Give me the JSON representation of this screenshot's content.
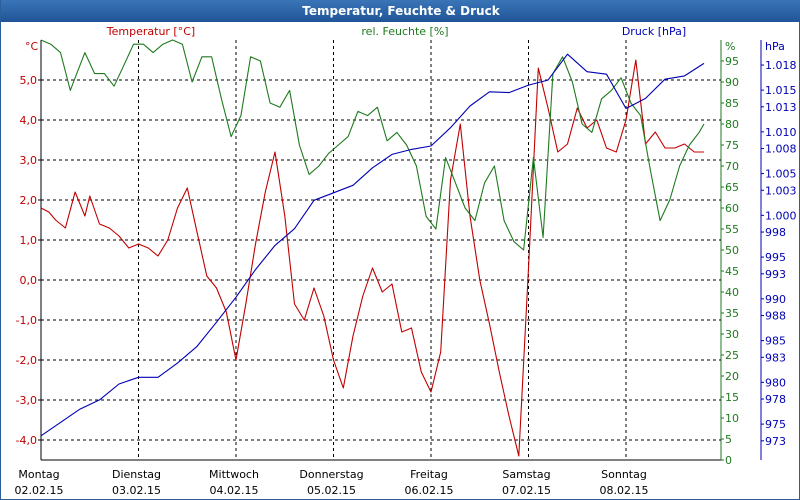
{
  "window": {
    "title": "Temperatur, Feuchte & Druck"
  },
  "colors": {
    "temperature": "#c00000",
    "humidity": "#1f7a1f",
    "pressure": "#0000b4",
    "grid": "#000000",
    "title_bar": "#2b63a6"
  },
  "chart_data": {
    "type": "line",
    "title": "Temperatur, Feuchte & Druck",
    "x_days": [
      {
        "day": "Montag",
        "date": "02.02.15"
      },
      {
        "day": "Dienstag",
        "date": "03.02.15"
      },
      {
        "day": "Mittwoch",
        "date": "04.02.15"
      },
      {
        "day": "Donnerstag",
        "date": "05.02.15"
      },
      {
        "day": "Freitag",
        "date": "06.02.15"
      },
      {
        "day": "Samstag",
        "date": "07.02.15"
      },
      {
        "day": "Sonntag",
        "date": "08.02.15"
      }
    ],
    "axes": {
      "temperature": {
        "label": "Temperatur [°C]",
        "unit": "°C",
        "range": [
          -4.5,
          6.0
        ],
        "ticks": [
          "-4,0",
          "-3,0",
          "-2,0",
          "-1,0",
          "0,0",
          "1,0",
          "2,0",
          "3,0",
          "4,0",
          "5,0"
        ]
      },
      "humidity": {
        "label": "rel. Feuchte [%]",
        "unit": "%",
        "range": [
          0,
          100
        ],
        "ticks": [
          "0",
          "5",
          "10",
          "15",
          "20",
          "25",
          "30",
          "35",
          "40",
          "45",
          "50",
          "55",
          "60",
          "65",
          "70",
          "75",
          "80",
          "85",
          "90",
          "95"
        ]
      },
      "pressure": {
        "label": "Druck [hPa]",
        "unit": "hPa",
        "range": [
          970.7,
          1021.0
        ],
        "ticks": [
          "973",
          "975",
          "978",
          "980",
          "983",
          "985",
          "988",
          "990",
          "993",
          "995",
          "998",
          "1.000",
          "1.003",
          "1.005",
          "1.008",
          "1.010",
          "1.013",
          "1.015",
          "1.018"
        ]
      }
    },
    "series": [
      {
        "name": "Temperatur",
        "axis": "temperature",
        "x": [
          0,
          0.08,
          0.15,
          0.25,
          0.35,
          0.45,
          0.5,
          0.6,
          0.7,
          0.8,
          0.9,
          1.0,
          1.1,
          1.2,
          1.3,
          1.4,
          1.5,
          1.6,
          1.7,
          1.8,
          1.9,
          2.0,
          2.1,
          2.2,
          2.3,
          2.4,
          2.5,
          2.6,
          2.7,
          2.8,
          2.9,
          3.0,
          3.1,
          3.2,
          3.3,
          3.4,
          3.5,
          3.6,
          3.7,
          3.8,
          3.9,
          4.0,
          4.1,
          4.2,
          4.3,
          4.4,
          4.5,
          4.6,
          4.7,
          4.8,
          4.9,
          5.0,
          5.1,
          5.2,
          5.3,
          5.4,
          5.5,
          5.6,
          5.7,
          5.8,
          5.9,
          6.0,
          6.1,
          6.2,
          6.3,
          6.4,
          6.5,
          6.6,
          6.7,
          6.8
        ],
        "values": [
          1.8,
          1.7,
          1.5,
          1.3,
          2.2,
          1.6,
          2.1,
          1.4,
          1.3,
          1.1,
          0.8,
          0.9,
          0.8,
          0.6,
          1.0,
          1.8,
          2.3,
          1.2,
          0.1,
          -0.2,
          -0.8,
          -2.0,
          -0.6,
          0.9,
          2.2,
          3.2,
          1.6,
          -0.6,
          -1.0,
          -0.2,
          -0.9,
          -2.0,
          -2.7,
          -1.4,
          -0.4,
          0.3,
          -0.3,
          -0.1,
          -1.3,
          -1.2,
          -2.3,
          -2.8,
          -1.8,
          2.5,
          3.9,
          1.6,
          0.0,
          -1.1,
          -2.3,
          -3.4,
          -4.4,
          0.3,
          5.3,
          4.3,
          3.2,
          3.4,
          4.3,
          3.8,
          4.0,
          3.3,
          3.2,
          4.0,
          5.5,
          3.4,
          3.7,
          3.3,
          3.3,
          3.4,
          3.2,
          3.2
        ]
      },
      {
        "name": "rel. Feuchte",
        "axis": "humidity",
        "x": [
          0,
          0.1,
          0.2,
          0.3,
          0.35,
          0.45,
          0.55,
          0.65,
          0.75,
          0.85,
          0.95,
          1.05,
          1.15,
          1.25,
          1.35,
          1.45,
          1.55,
          1.65,
          1.75,
          1.85,
          1.95,
          2.05,
          2.15,
          2.25,
          2.35,
          2.45,
          2.55,
          2.65,
          2.75,
          2.85,
          2.95,
          3.05,
          3.15,
          3.25,
          3.35,
          3.45,
          3.55,
          3.65,
          3.75,
          3.85,
          3.95,
          4.05,
          4.15,
          4.25,
          4.35,
          4.45,
          4.55,
          4.65,
          4.75,
          4.85,
          4.95,
          5.05,
          5.15,
          5.25,
          5.35,
          5.45,
          5.55,
          5.65,
          5.75,
          5.85,
          5.95,
          6.05,
          6.15,
          6.25,
          6.35,
          6.45,
          6.55,
          6.65,
          6.75,
          6.8
        ],
        "values": [
          100,
          99,
          97,
          88,
          91,
          97,
          92,
          92,
          89,
          94,
          99,
          99,
          97,
          99,
          100,
          99,
          90,
          96,
          96,
          86,
          77,
          82,
          96,
          95,
          85,
          84,
          88,
          75,
          68,
          70,
          73,
          75,
          77,
          83,
          82,
          84,
          76,
          78,
          75,
          70,
          58,
          55,
          72,
          66,
          60,
          57,
          66,
          70,
          57,
          52,
          50,
          72,
          53,
          92,
          96,
          90,
          80,
          78,
          86,
          88,
          91,
          85,
          82,
          69,
          57,
          62,
          70,
          75,
          78,
          80
        ]
      },
      {
        "name": "Druck",
        "axis": "pressure",
        "x": [
          0,
          0.2,
          0.4,
          0.6,
          0.8,
          1.0,
          1.2,
          1.4,
          1.6,
          1.8,
          2.0,
          2.2,
          2.4,
          2.6,
          2.8,
          3.0,
          3.2,
          3.4,
          3.6,
          3.8,
          4.0,
          4.2,
          4.4,
          4.6,
          4.8,
          5.0,
          5.2,
          5.4,
          5.6,
          5.8,
          6.0,
          6.2,
          6.4,
          6.6,
          6.8
        ],
        "values": [
          973.6,
          975.2,
          976.8,
          977.9,
          979.8,
          980.6,
          980.6,
          982.3,
          984.3,
          987.2,
          990.2,
          993.5,
          996.4,
          998.4,
          1001.8,
          1002.7,
          1003.6,
          1005.7,
          1007.3,
          1007.9,
          1008.3,
          1010.5,
          1013.1,
          1014.8,
          1014.7,
          1015.6,
          1016.2,
          1019.3,
          1017.2,
          1016.9,
          1012.8,
          1014.0,
          1016.3,
          1016.7,
          1018.2
        ]
      }
    ]
  }
}
